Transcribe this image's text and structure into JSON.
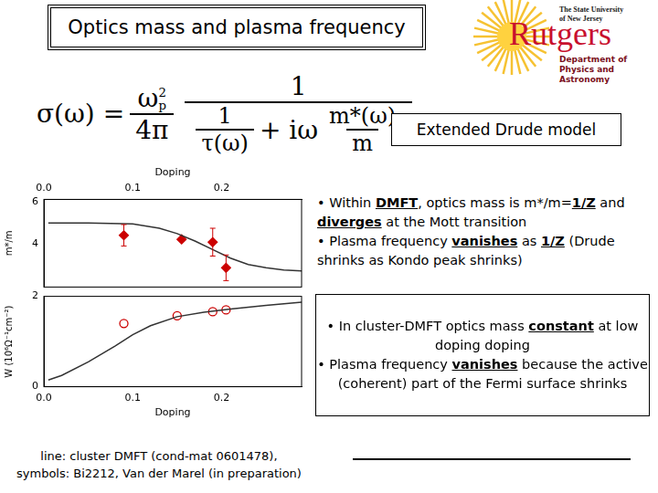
{
  "slide": {
    "title": "Optics mass and plasma frequency",
    "logo": {
      "top": [
        "The State University",
        "of New Jersey"
      ],
      "name": "Rutgers",
      "department": [
        "Department of",
        "Physics and Astronomy"
      ]
    },
    "formula": {
      "lhs": "σ(ω) =",
      "f1_num": "ω",
      "f1_num_sub": "p",
      "f1_num_sup": "2",
      "f1_den": "4π",
      "f2_num": "1",
      "f2_den_a_num": "1",
      "f2_den_a_den": "τ(ω)",
      "f2_den_mid": "+ iω",
      "f2_den_b_num": "m*(ω)",
      "f2_den_b_den": "m"
    },
    "model_label": "Extended Drude model",
    "notes_dmft": {
      "bullets": [
        "• Within DMFT, optics mass is m*/m=1/Z and diverges at the Mott transition",
        "• Plasma frequency vanishes as 1/Z (Drude shrinks as Kondo peak shrinks)"
      ],
      "emphasis": [
        "DMFT",
        "diverges",
        "vanishes",
        "1/Z"
      ]
    },
    "notes_cluster": {
      "bullets": [
        "• In cluster-DMFT optics mass constant at low doping doping",
        "• Plasma frequency vanishes because the active (coherent) part of the Fermi surface shrinks"
      ],
      "emphasis": [
        "constant",
        "vanishes"
      ]
    },
    "caption": [
      "line: cluster DMFT (cond-mat 0601478),",
      "symbols: Bi2212, Van der Marel (in preparation)"
    ]
  },
  "chart_data": [
    {
      "type": "scatter",
      "x_label": "Doping",
      "y_label": "m*/m",
      "xlim": [
        0,
        0.29
      ],
      "xticks": [
        {
          "value": 0,
          "label": "0.0"
        },
        {
          "value": 0.1,
          "label": "0.1"
        },
        {
          "value": 0.2,
          "label": "0.2"
        }
      ],
      "ylim": [
        2,
        6.1
      ],
      "yticks": [
        4,
        6
      ],
      "grid": false,
      "series": [
        {
          "type": "line",
          "color": "#333333",
          "x": [
            0.005,
            0.05,
            0.1,
            0.13,
            0.15,
            0.17,
            0.19,
            0.21,
            0.23,
            0.25,
            0.27,
            0.29
          ],
          "values": [
            5.0,
            5.0,
            4.95,
            4.75,
            4.5,
            4.15,
            3.75,
            3.35,
            3.05,
            2.9,
            2.8,
            2.75
          ]
        },
        {
          "type": "scatter",
          "marker": "diamond",
          "color": "#cc0000",
          "x": [
            0.09,
            0.155,
            0.19,
            0.205
          ],
          "values": [
            4.42,
            4.23,
            4.1,
            2.9
          ],
          "errors": [
            0.5,
            null,
            0.65,
            0.6
          ]
        }
      ]
    },
    {
      "type": "scatter",
      "x_label": "Doping",
      "y_label": "W (10⁶Ω⁻¹cm⁻²)",
      "xlim": [
        0,
        0.29
      ],
      "xticks": [
        {
          "value": 0,
          "label": "0.0"
        },
        {
          "value": 0.1,
          "label": "0.1"
        },
        {
          "value": 0.2,
          "label": "0.2"
        }
      ],
      "ylim": [
        0,
        2
      ],
      "yticks": [
        0,
        2
      ],
      "grid": false,
      "series": [
        {
          "type": "line",
          "color": "#333333",
          "x": [
            0.005,
            0.02,
            0.05,
            0.08,
            0.1,
            0.12,
            0.15,
            0.18,
            0.21,
            0.25,
            0.29
          ],
          "values": [
            0.15,
            0.25,
            0.55,
            0.9,
            1.15,
            1.35,
            1.55,
            1.65,
            1.72,
            1.8,
            1.87
          ]
        },
        {
          "type": "scatter",
          "marker": "open_circle",
          "color": "#cc0000",
          "x": [
            0.09,
            0.15,
            0.19,
            0.205
          ],
          "values": [
            1.4,
            1.57,
            1.66,
            1.7
          ]
        }
      ]
    }
  ]
}
